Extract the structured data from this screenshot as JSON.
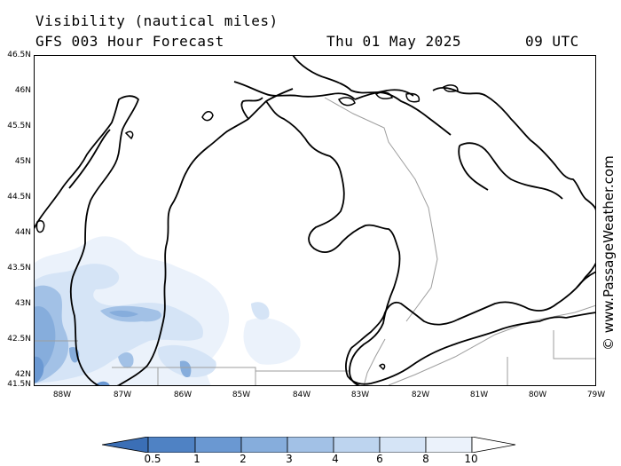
{
  "header": {
    "line1": "Visibility (nautical miles)",
    "line2": "GFS 003 Hour Forecast",
    "date": "Thu 01 May 2025",
    "time": "09 UTC"
  },
  "axes": {
    "lat_labels": [
      "46.5N",
      "46N",
      "45.5N",
      "45N",
      "44.5N",
      "44N",
      "43.5N",
      "43N",
      "42.5N",
      "42N",
      "41.5N"
    ],
    "lon_labels": [
      "88W",
      "87W",
      "86W",
      "85W",
      "84W",
      "83W",
      "82W",
      "81W",
      "80W",
      "79W"
    ]
  },
  "credit": "© www.PassageWeather.com",
  "colorbar": {
    "labels": [
      "0.5",
      "1",
      "2",
      "3",
      "4",
      "6",
      "8",
      "10"
    ],
    "colors": [
      "#3b6fb6",
      "#4f82c4",
      "#6a98d2",
      "#86addc",
      "#a2c1e6",
      "#bdd4ef",
      "#d5e4f6",
      "#ebf2fb",
      "#ffffff"
    ]
  }
}
